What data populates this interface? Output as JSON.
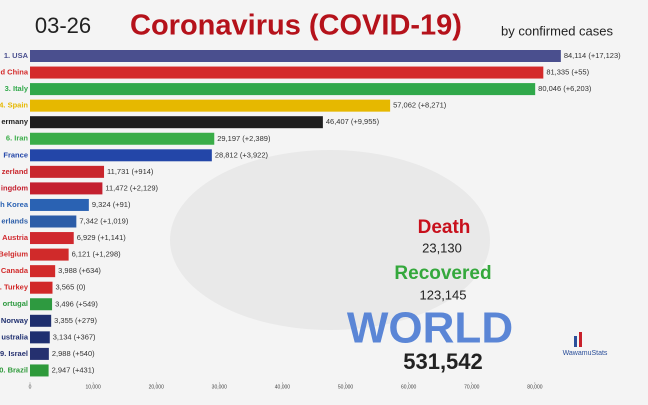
{
  "chart_data": {
    "type": "bar",
    "orientation": "horizontal",
    "date": "03-26",
    "title": "Coronavirus (COVID-19)",
    "subtitle": "by confirmed cases",
    "categories": [
      "1. USA",
      "d China",
      "3. Italy",
      "4. Spain",
      "ermany",
      "6. Iran",
      "France",
      "zerland",
      "ingdom",
      "h Korea",
      "erlands",
      "Austria",
      "Belgium",
      "Canada",
      ". Turkey",
      "ortugal",
      "Norway",
      "ustralia",
      "9. Israel",
      "0. Brazil"
    ],
    "values": [
      84114,
      81335,
      80046,
      57062,
      46407,
      29197,
      28812,
      11731,
      11472,
      9324,
      7342,
      6929,
      6121,
      3988,
      3565,
      3496,
      3355,
      3134,
      2988,
      2947
    ],
    "value_labels": [
      "84,114",
      "81,335",
      "80,046",
      "57,062",
      "46,407",
      "29,197",
      "28,812",
      "11,731",
      "11,472",
      "9,324",
      "7,342",
      "6,929",
      "6,121",
      "3,988",
      "3,565",
      "3,496",
      "3,355",
      "3,134",
      "2,988",
      "2,947"
    ],
    "changes": [
      17123,
      55,
      6203,
      8271,
      9955,
      2389,
      3922,
      914,
      2129,
      91,
      1019,
      1141,
      1298,
      634,
      0,
      549,
      279,
      367,
      540,
      431
    ],
    "change_labels": [
      "(+17,123)",
      "(+55)",
      "(+6,203)",
      "(+8,271)",
      "(+9,955)",
      "(+2,389)",
      "(+3,922)",
      "(+914)",
      "(+2,129)",
      "(+91)",
      "(+1,019)",
      "(+1,141)",
      "(+1,298)",
      "(+634)",
      "(0)",
      "(+549)",
      "(+279)",
      "(+367)",
      "(+540)",
      "(+431)"
    ],
    "colors": [
      "#4a4f8e",
      "#d42a2a",
      "#30a84a",
      "#e6b800",
      "#1e1e1e",
      "#3aad48",
      "#2346a8",
      "#c9262c",
      "#c4202f",
      "#2a62b3",
      "#2c5da8",
      "#d0282e",
      "#d02a2a",
      "#d22a2a",
      "#d12828",
      "#2e9a40",
      "#1f2f6e",
      "#1f2f70",
      "#25306f",
      "#2e9a3a"
    ],
    "xlim": [
      0,
      90000
    ],
    "xticks": [
      0,
      {
        "value": 10000,
        "label": "10,000"
      },
      {
        "value": 20000,
        "label": "20,000"
      },
      {
        "value": 30000,
        "label": "30,000"
      },
      {
        "value": 40000,
        "label": "40,000"
      },
      {
        "value": 50000,
        "label": "50,000"
      },
      {
        "value": 60000,
        "label": "60,000"
      },
      {
        "value": 70000,
        "label": "70,000"
      },
      {
        "value": 80000,
        "label": "80,000"
      }
    ],
    "death_label": "Death",
    "death_value": "23,130",
    "recovered_label": "Recovered",
    "recovered_value": "123,145",
    "world_label": "WORLD",
    "world_value": "531,542",
    "logo": "WawamuStats"
  }
}
